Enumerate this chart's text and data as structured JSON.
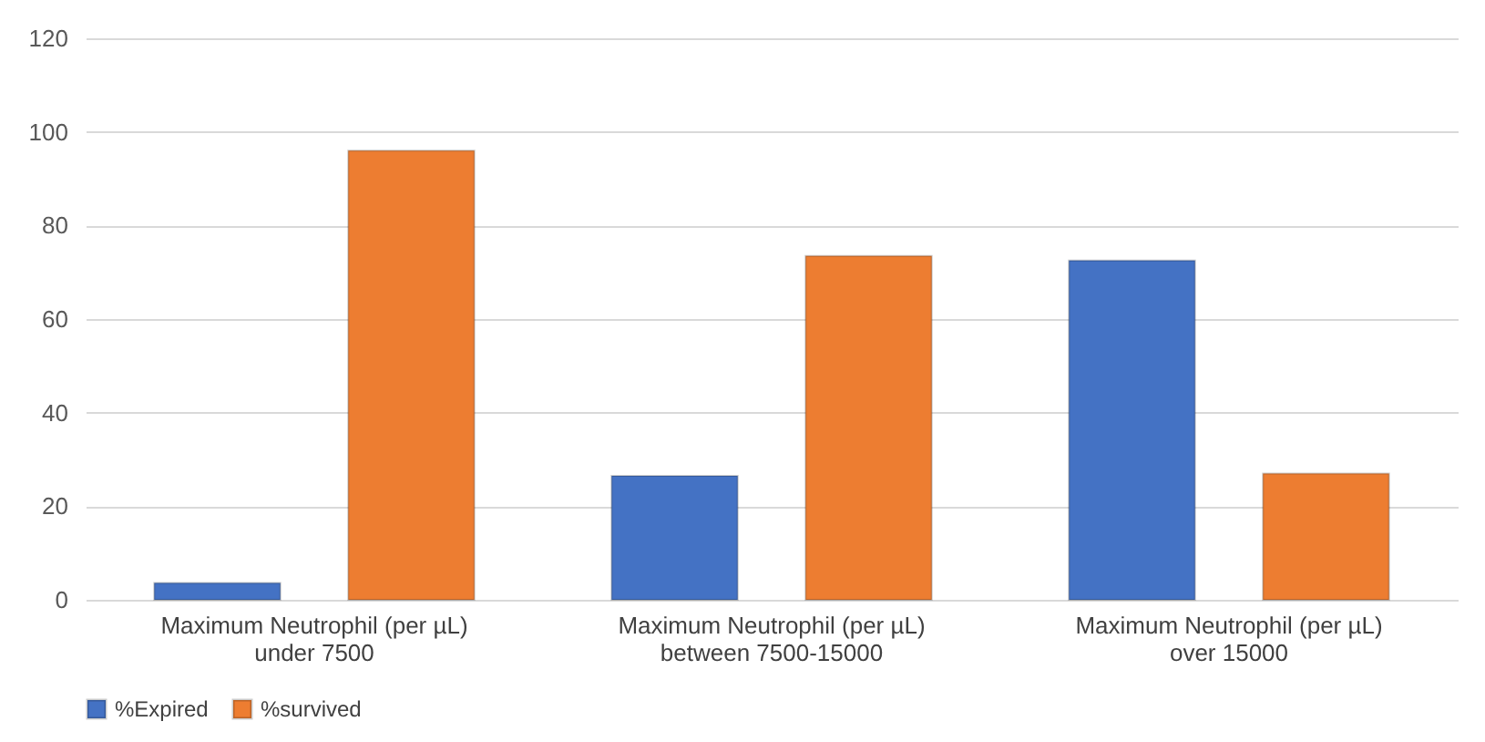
{
  "chart_data": {
    "type": "bar",
    "categories": [
      "Maximum Neutrophil (per µL)\nunder 7500",
      "Maximum Neutrophil (per µL)\nbetween 7500-15000",
      "Maximum Neutrophil (per µL)\nover 15000"
    ],
    "series": [
      {
        "name": "%Expired",
        "color": "#4472c4",
        "values": [
          3.6,
          26.5,
          72.5
        ]
      },
      {
        "name": "%survived",
        "color": "#ed7d31",
        "values": [
          96,
          73.5,
          27
        ]
      }
    ],
    "ylim": [
      0,
      120
    ],
    "yticks": [
      0,
      20,
      40,
      60,
      80,
      100,
      120
    ],
    "grid": "y",
    "legend": "bottom"
  }
}
